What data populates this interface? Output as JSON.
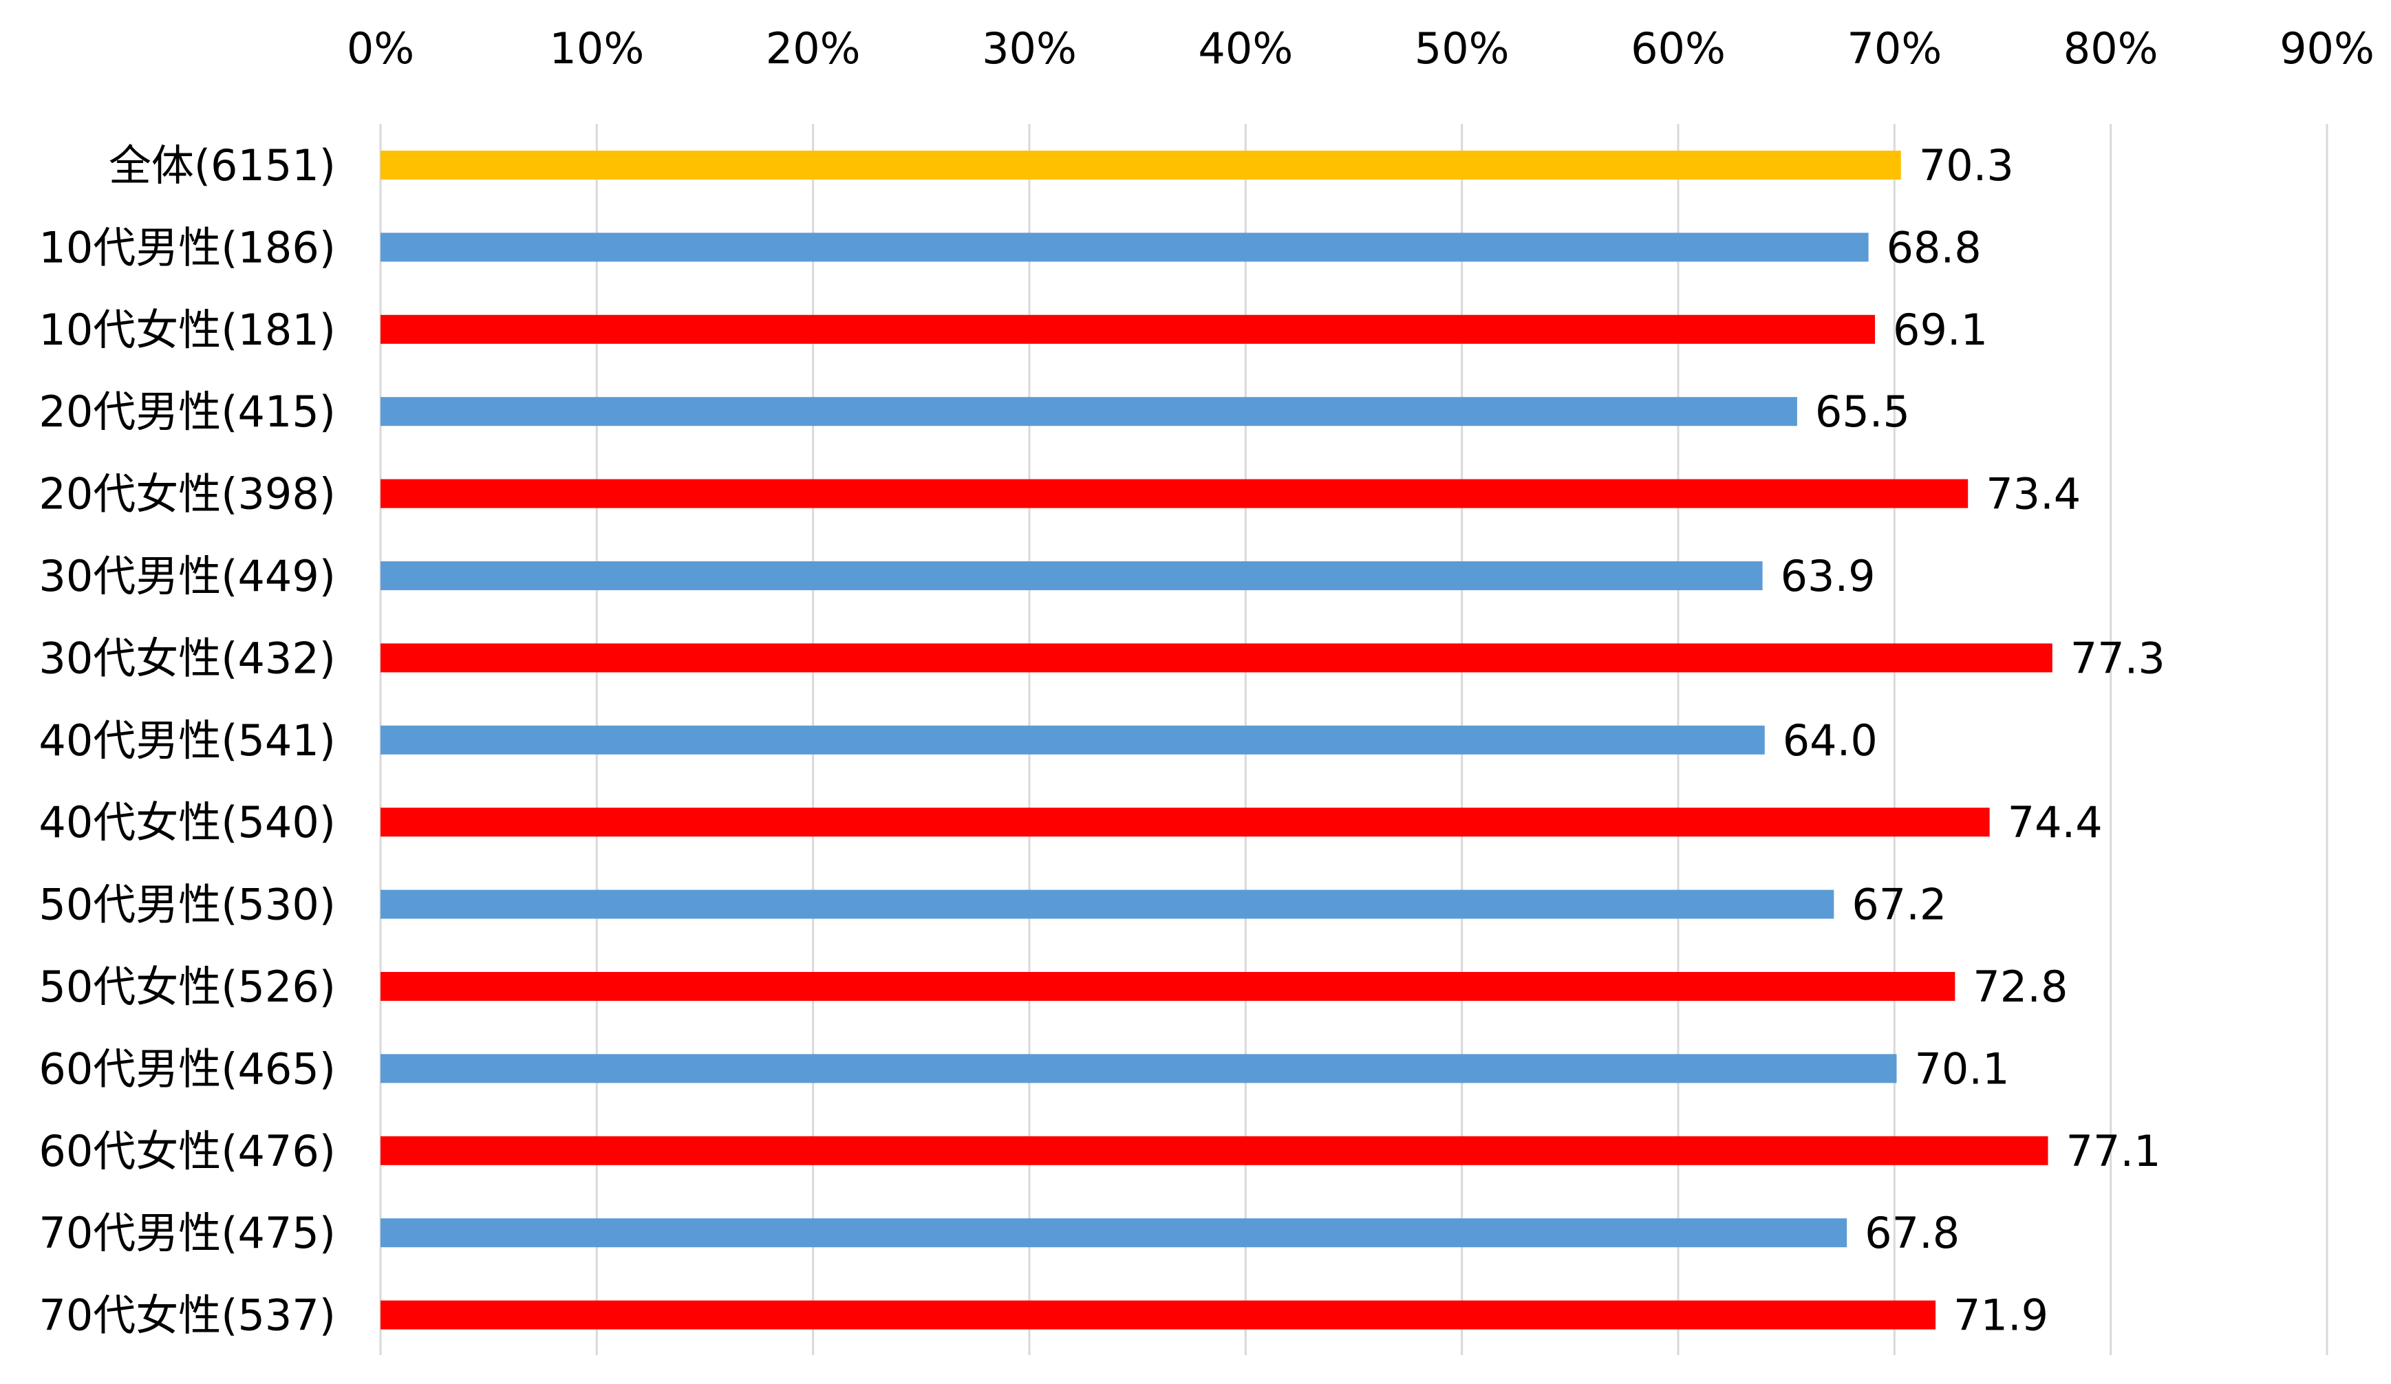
{
  "chart_data": {
    "type": "bar",
    "orientation": "horizontal",
    "title": "",
    "xlabel": "",
    "ylabel": "",
    "xlim": [
      0,
      90
    ],
    "x_ticks": [
      "0%",
      "10%",
      "20%",
      "30%",
      "40%",
      "50%",
      "60%",
      "70%",
      "80%",
      "90%"
    ],
    "x_axis_position": "top",
    "grid": true,
    "legend": "none",
    "categories": [
      "全体(6151)",
      "10代男性(186)",
      "10代女性(181)",
      "20代男性(415)",
      "20代女性(398)",
      "30代男性(449)",
      "30代女性(432)",
      "40代男性(541)",
      "40代女性(540)",
      "50代男性(530)",
      "50代女性(526)",
      "60代男性(465)",
      "60代女性(476)",
      "70代男性(475)",
      "70代女性(537)"
    ],
    "values": [
      70.3,
      68.8,
      69.1,
      65.5,
      73.4,
      63.9,
      77.3,
      64.0,
      74.4,
      67.2,
      72.8,
      70.1,
      77.1,
      67.8,
      71.9
    ],
    "value_labels": [
      "70.3",
      "68.8",
      "69.1",
      "65.5",
      "73.4",
      "63.9",
      "77.3",
      "64.0",
      "74.4",
      "67.2",
      "72.8",
      "70.1",
      "77.1",
      "67.8",
      "71.9"
    ],
    "bar_colors": [
      "#FFC000",
      "#5B9BD5",
      "#FF0000",
      "#5B9BD5",
      "#FF0000",
      "#5B9BD5",
      "#FF0000",
      "#5B9BD5",
      "#FF0000",
      "#5B9BD5",
      "#FF0000",
      "#5B9BD5",
      "#FF0000",
      "#5B9BD5",
      "#FF0000"
    ],
    "colors": {
      "total": "#FFC000",
      "male": "#5B9BD5",
      "female": "#FF0000",
      "grid": "#D9D9D9"
    }
  }
}
